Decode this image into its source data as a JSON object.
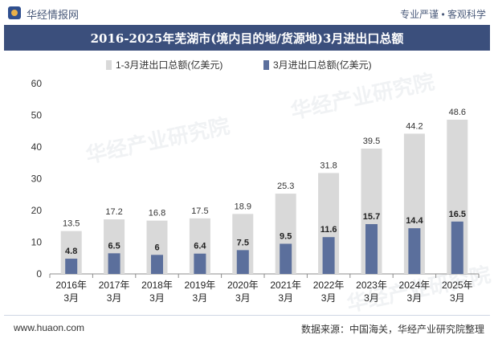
{
  "header": {
    "site_name": "华经情报网",
    "slogan": "专业严谨 • 客观科学"
  },
  "footer": {
    "website": "www.huaon.com",
    "source": "数据来源：中国海关，华经产业研究院整理"
  },
  "colors": {
    "title_band": "#3b4f7c",
    "series_total": "#d9d9d9",
    "series_month": "#5b6f9c"
  },
  "chart_data": {
    "type": "bar",
    "title": "2016-2025年芜湖市(境内目的地/货源地)3月进出口总额",
    "categories": [
      "2016年\n3月",
      "2017年\n3月",
      "2018年\n3月",
      "2019年\n3月",
      "2020年\n3月",
      "2021年\n3月",
      "2022年\n3月",
      "2023年\n3月",
      "2024年\n3月",
      "2025年\n3月"
    ],
    "series": [
      {
        "name": "1-3月进出口总额(亿美元)",
        "values": [
          13.5,
          17.2,
          16.8,
          17.5,
          18.9,
          25.3,
          31.8,
          39.5,
          44.2,
          48.6
        ]
      },
      {
        "name": "3月进出口总额(亿美元)",
        "values": [
          4.8,
          6.5,
          6,
          6.4,
          7.5,
          9.5,
          11.6,
          15.7,
          14.4,
          16.5
        ]
      }
    ],
    "ylim": [
      0,
      60
    ],
    "yticks": [
      0,
      10,
      20,
      30,
      40,
      50,
      60
    ],
    "grid": false,
    "legend_position": "top"
  }
}
